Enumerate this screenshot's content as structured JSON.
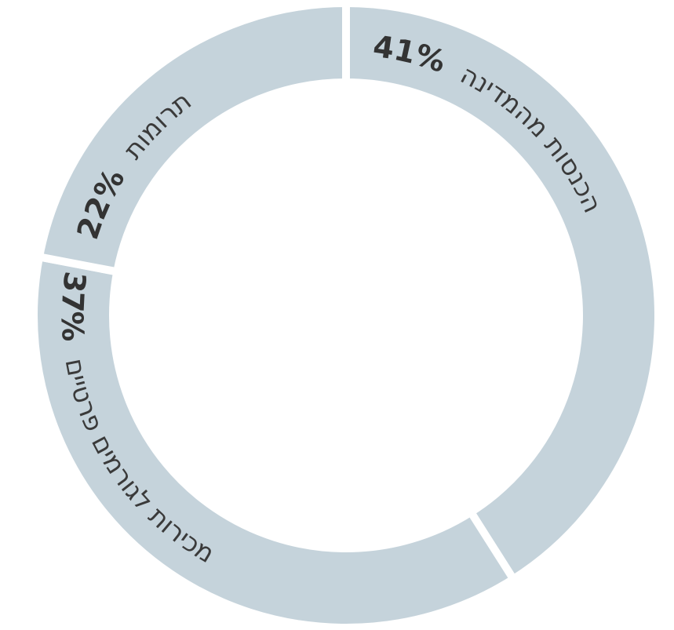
{
  "chart_data": {
    "type": "donut",
    "categories": [
      "הכנסות מהמדינה",
      "מכירות לגורמים פרטיים",
      "תרומות"
    ],
    "values": [
      41,
      37,
      22
    ],
    "value_labels": [
      "41%",
      "37%",
      "22%"
    ],
    "color": "#c5d3db"
  }
}
